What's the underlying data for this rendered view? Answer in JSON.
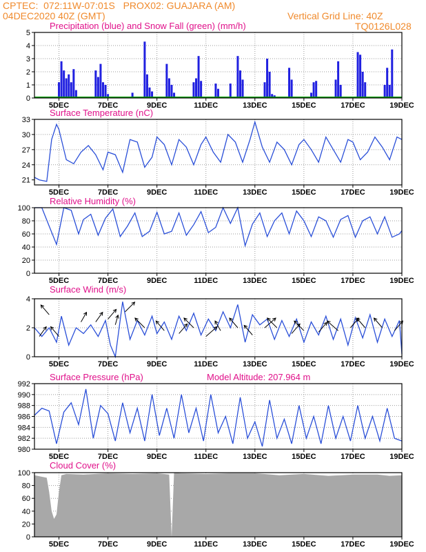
{
  "header": {
    "line1": "CPTEC:  072:11W-07:01S   PROX02: GUAJARA (AM)",
    "line2_left": "04DEC2020 40Z (GMT)",
    "line2_right": "Vertical Grid Line: 40Z",
    "code": "TQ0126L028"
  },
  "colors": {
    "precip": "#2020e0",
    "snow": "#00a000",
    "line": "#2a4fd8",
    "cloud": "#a8a8a8",
    "title": "#e0108a",
    "header": "#f08a2c"
  },
  "x_ticks": [
    "5DEC",
    "7DEC",
    "9DEC",
    "11DEC",
    "13DEC",
    "15DEC",
    "17DEC",
    "19DEC"
  ],
  "chart_data": [
    {
      "type": "bar",
      "title": "Precipitation (blue) and Snow Fall (green) (mm/h)",
      "yticks": [
        "0",
        "1",
        "2",
        "3",
        "4",
        "5"
      ],
      "ylim": [
        0,
        5
      ],
      "x_range_days": [
        4.0,
        19.0
      ],
      "series": [
        {
          "name": "Precipitation",
          "x": [
            5.0,
            5.1,
            5.2,
            5.3,
            5.4,
            5.5,
            5.6,
            5.7,
            6.5,
            6.6,
            6.7,
            6.8,
            6.9,
            7.0,
            8.0,
            8.5,
            8.6,
            8.7,
            8.8,
            9.4,
            9.5,
            9.6,
            9.7,
            10.5,
            10.6,
            10.7,
            10.8,
            11.4,
            11.5,
            12.0,
            12.3,
            12.4,
            12.5,
            13.4,
            13.5,
            13.6,
            13.7,
            13.8,
            14.4,
            14.5,
            15.3,
            15.4,
            15.5,
            16.3,
            16.4,
            16.5,
            17.2,
            17.3,
            17.4,
            17.5,
            18.3,
            18.4,
            18.5,
            18.6
          ],
          "values": [
            1.2,
            2.8,
            2.1,
            1.5,
            1.8,
            1.2,
            2.2,
            0.6,
            2.1,
            1.6,
            2.6,
            1.2,
            1.0,
            0.3,
            0.4,
            4.3,
            1.8,
            0.8,
            0.5,
            2.6,
            1.5,
            1.0,
            0.4,
            1.2,
            1.5,
            3.2,
            1.3,
            1.1,
            0.7,
            1.1,
            3.2,
            2.1,
            1.4,
            1.2,
            3.0,
            2.0,
            0.3,
            0.2,
            2.3,
            1.4,
            0.4,
            1.2,
            1.3,
            1.4,
            2.8,
            1.0,
            3.5,
            3.3,
            2.0,
            1.2,
            1.0,
            2.3,
            1.0,
            3.7
          ]
        },
        {
          "name": "Snow Fall",
          "x": [
            4.0,
            19.0
          ],
          "values": [
            0,
            0
          ]
        }
      ]
    },
    {
      "type": "line",
      "title": "Surface Temperature (nC)",
      "yticks": [
        "21",
        "24",
        "27",
        "30",
        "33"
      ],
      "ylim": [
        20,
        33
      ],
      "x": [
        4.0,
        4.2,
        4.5,
        4.7,
        4.9,
        5.0,
        5.3,
        5.6,
        5.9,
        6.2,
        6.5,
        6.8,
        7.0,
        7.3,
        7.6,
        7.9,
        8.2,
        8.5,
        8.8,
        9.0,
        9.3,
        9.6,
        9.9,
        10.2,
        10.5,
        10.8,
        11.0,
        11.3,
        11.6,
        11.9,
        12.2,
        12.5,
        12.8,
        13.0,
        13.3,
        13.6,
        13.9,
        14.2,
        14.5,
        14.8,
        15.0,
        15.3,
        15.6,
        15.9,
        16.2,
        16.5,
        16.8,
        17.0,
        17.3,
        17.6,
        17.9,
        18.2,
        18.5,
        18.8,
        19.0
      ],
      "values": [
        21.5,
        21.0,
        20.7,
        29.0,
        32.0,
        31.0,
        25.0,
        24.2,
        26.5,
        27.8,
        26.0,
        23.0,
        26.5,
        26.0,
        22.5,
        29.0,
        28.5,
        23.5,
        25.5,
        29.5,
        28.0,
        24.0,
        29.0,
        27.5,
        24.0,
        28.0,
        29.5,
        26.5,
        24.5,
        30.0,
        28.5,
        24.5,
        29.0,
        32.5,
        27.5,
        24.5,
        28.5,
        27.0,
        24.0,
        28.0,
        29.0,
        27.0,
        24.5,
        29.5,
        27.0,
        24.5,
        29.0,
        28.5,
        25.0,
        26.5,
        29.5,
        27.5,
        25.0,
        29.5,
        29.0
      ]
    },
    {
      "type": "line",
      "title": "Relative Humidity (%)",
      "yticks": [
        "0",
        "20",
        "40",
        "60",
        "80",
        "100"
      ],
      "ylim": [
        0,
        100
      ],
      "x": [
        4.0,
        4.3,
        4.6,
        4.9,
        5.2,
        5.5,
        5.8,
        6.0,
        6.3,
        6.6,
        6.9,
        7.2,
        7.5,
        7.8,
        8.1,
        8.4,
        8.7,
        9.0,
        9.3,
        9.6,
        9.9,
        10.2,
        10.5,
        10.8,
        11.1,
        11.4,
        11.7,
        12.0,
        12.3,
        12.6,
        12.9,
        13.2,
        13.5,
        13.8,
        14.1,
        14.4,
        14.7,
        15.0,
        15.3,
        15.6,
        15.9,
        16.2,
        16.5,
        16.8,
        17.1,
        17.4,
        17.7,
        18.0,
        18.3,
        18.6,
        18.9,
        19.0
      ],
      "values": [
        100,
        100,
        72,
        44,
        100,
        96,
        60,
        82,
        90,
        58,
        84,
        98,
        56,
        72,
        92,
        56,
        64,
        93,
        60,
        64,
        92,
        58,
        74,
        94,
        62,
        70,
        100,
        76,
        100,
        42,
        75,
        92,
        56,
        80,
        92,
        60,
        95,
        80,
        56,
        86,
        80,
        55,
        82,
        88,
        55,
        80,
        86,
        60,
        86,
        55,
        60,
        65
      ]
    },
    {
      "type": "line",
      "title": "Surface Wind (m/s)",
      "yticks": [
        "0",
        "2",
        "4"
      ],
      "ylim": [
        0,
        4
      ],
      "x": [
        4.0,
        4.3,
        4.6,
        4.9,
        5.1,
        5.4,
        5.7,
        6.0,
        6.3,
        6.6,
        6.9,
        7.1,
        7.3,
        7.6,
        7.9,
        8.2,
        8.5,
        8.8,
        9.0,
        9.3,
        9.6,
        9.9,
        10.2,
        10.5,
        10.8,
        11.1,
        11.4,
        11.7,
        12.0,
        12.3,
        12.6,
        12.9,
        13.2,
        13.5,
        13.8,
        14.1,
        14.4,
        14.7,
        15.0,
        15.3,
        15.6,
        15.9,
        16.2,
        16.5,
        16.8,
        17.1,
        17.4,
        17.7,
        18.0,
        18.3,
        18.6,
        18.9,
        19.0
      ],
      "values": [
        2.0,
        1.4,
        2.0,
        1.0,
        2.8,
        0.8,
        2.0,
        1.6,
        2.2,
        1.4,
        2.5,
        0.8,
        0.0,
        3.8,
        1.2,
        2.5,
        1.5,
        2.8,
        1.6,
        2.4,
        1.2,
        2.8,
        1.8,
        3.0,
        1.5,
        2.6,
        1.8,
        3.1,
        2.0,
        3.6,
        1.0,
        2.9,
        2.2,
        2.6,
        1.2,
        2.5,
        1.4,
        2.6,
        1.0,
        2.4,
        1.5,
        2.8,
        1.2,
        2.6,
        0.8,
        2.7,
        1.3,
        2.9,
        1.0,
        2.6,
        1.4,
        2.5,
        0.2
      ],
      "arrows": [
        [
          4.2,
          1.4,
          0.25
        ],
        [
          4.6,
          2.9,
          -0.3
        ],
        [
          5.0,
          1.4,
          -0.3
        ],
        [
          5.9,
          2.4,
          0.2
        ],
        [
          6.5,
          2.4,
          0.25
        ],
        [
          7.0,
          2.6,
          0.3
        ],
        [
          7.3,
          2.2,
          0.1
        ],
        [
          7.7,
          3.1,
          0.35
        ],
        [
          8.5,
          2.0,
          -0.35
        ],
        [
          9.3,
          1.8,
          -0.3
        ],
        [
          9.9,
          1.6,
          0.3
        ],
        [
          10.5,
          2.0,
          -0.35
        ],
        [
          11.0,
          1.4,
          0.4
        ],
        [
          11.6,
          1.8,
          -0.2
        ],
        [
          12.3,
          2.0,
          -0.3
        ],
        [
          12.9,
          1.5,
          -0.3
        ],
        [
          13.4,
          2.0,
          0.4
        ],
        [
          13.9,
          2.0,
          -0.35
        ],
        [
          14.5,
          1.6,
          0.3
        ],
        [
          15.0,
          1.8,
          -0.35
        ],
        [
          15.6,
          1.7,
          0.3
        ],
        [
          16.4,
          1.8,
          -0.4
        ],
        [
          16.9,
          2.0,
          0.3
        ],
        [
          17.5,
          2.0,
          -0.3
        ],
        [
          18.2,
          2.0,
          -0.3
        ],
        [
          18.7,
          1.8,
          0.3
        ]
      ]
    },
    {
      "type": "line",
      "title": "Surface Pressure (hPa)",
      "annotation": "Model Altitude: 207.964  m",
      "yticks": [
        "980",
        "982",
        "984",
        "986",
        "988",
        "990",
        "992"
      ],
      "ylim": [
        980,
        992
      ],
      "x": [
        4.0,
        4.3,
        4.6,
        4.9,
        5.2,
        5.5,
        5.8,
        6.1,
        6.4,
        6.7,
        7.0,
        7.3,
        7.6,
        7.9,
        8.2,
        8.5,
        8.8,
        9.1,
        9.4,
        9.7,
        10.0,
        10.3,
        10.6,
        10.9,
        11.2,
        11.5,
        11.8,
        12.1,
        12.4,
        12.7,
        13.0,
        13.3,
        13.6,
        13.9,
        14.2,
        14.5,
        14.8,
        15.1,
        15.4,
        15.7,
        16.0,
        16.3,
        16.6,
        16.9,
        17.2,
        17.5,
        17.8,
        18.1,
        18.4,
        18.7,
        19.0
      ],
      "values": [
        986.2,
        987.5,
        987.0,
        981.0,
        986.8,
        988.5,
        984.5,
        991.0,
        982.0,
        988.0,
        986.5,
        981.5,
        988.5,
        983.0,
        987.5,
        981.5,
        990.0,
        982.5,
        987.5,
        982.0,
        990.0,
        983.0,
        987.5,
        981.5,
        990.0,
        983.0,
        986.0,
        981.0,
        989.5,
        982.0,
        985.0,
        980.5,
        989.0,
        982.0,
        985.5,
        981.0,
        988.0,
        982.0,
        986.0,
        981.0,
        988.0,
        982.0,
        986.0,
        981.5,
        988.0,
        982.0,
        986.0,
        981.5,
        987.5,
        982.0,
        981.5
      ]
    },
    {
      "type": "area",
      "title": "Cloud Cover (%)",
      "yticks": [
        "0",
        "20",
        "40",
        "60",
        "80",
        "100"
      ],
      "ylim": [
        0,
        100
      ],
      "x": [
        4.0,
        4.5,
        4.6,
        4.7,
        4.8,
        4.9,
        5.0,
        5.1,
        5.3,
        6.0,
        7.0,
        8.0,
        9.0,
        9.5,
        9.6,
        9.7,
        10.0,
        11.0,
        12.0,
        13.0,
        14.0,
        15.0,
        16.0,
        16.5,
        17.0,
        18.0,
        18.5,
        19.0
      ],
      "values": [
        96,
        92,
        70,
        40,
        28,
        35,
        70,
        96,
        98,
        97,
        99,
        98,
        99,
        97,
        0,
        100,
        99,
        98,
        99,
        99,
        96,
        98,
        95,
        96,
        97,
        97,
        95,
        96
      ]
    }
  ]
}
